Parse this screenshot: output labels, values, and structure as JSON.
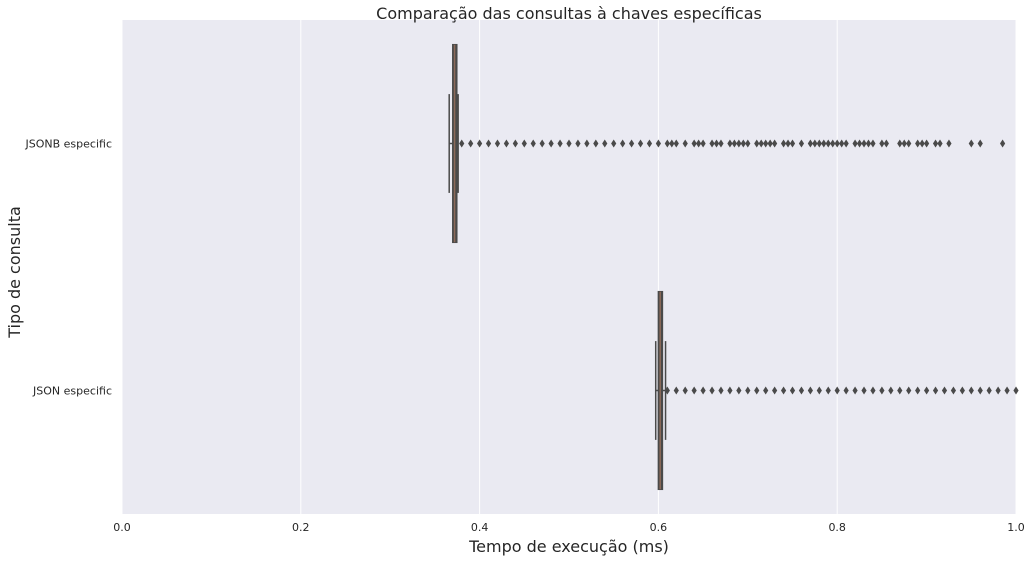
{
  "chart_data": {
    "type": "boxplot",
    "orientation": "horizontal",
    "title": "Comparação das consultas à chaves específicas",
    "xlabel": "Tempo de execução (ms)",
    "ylabel": "Tipo de consulta",
    "xlim": [
      0.0,
      1.0
    ],
    "x_ticks": [
      "0.0",
      "0.2",
      "0.4",
      "0.6",
      "0.8",
      "1.0"
    ],
    "grid": true,
    "background": "#eaeaf2",
    "box_color": "#4a4a4a",
    "median_color": "#8c6a5a",
    "categories": [
      "JSONB especific",
      "JSON especific"
    ],
    "series": [
      {
        "category": "JSONB especific",
        "whisker_low": 0.366,
        "q1": 0.37,
        "median": 0.372,
        "q3": 0.374,
        "whisker_high": 0.376,
        "outliers": [
          0.38,
          0.39,
          0.4,
          0.41,
          0.42,
          0.43,
          0.44,
          0.45,
          0.46,
          0.47,
          0.48,
          0.49,
          0.5,
          0.51,
          0.52,
          0.53,
          0.54,
          0.55,
          0.56,
          0.57,
          0.58,
          0.59,
          0.6,
          0.61,
          0.615,
          0.62,
          0.63,
          0.64,
          0.645,
          0.65,
          0.66,
          0.665,
          0.67,
          0.68,
          0.685,
          0.69,
          0.695,
          0.7,
          0.71,
          0.715,
          0.72,
          0.725,
          0.73,
          0.74,
          0.745,
          0.75,
          0.76,
          0.77,
          0.775,
          0.78,
          0.785,
          0.79,
          0.795,
          0.8,
          0.805,
          0.81,
          0.82,
          0.825,
          0.83,
          0.835,
          0.84,
          0.85,
          0.855,
          0.87,
          0.875,
          0.88,
          0.89,
          0.895,
          0.9,
          0.91,
          0.915,
          0.925,
          0.95,
          0.96,
          0.985
        ]
      },
      {
        "category": "JSON especific",
        "whisker_low": 0.597,
        "q1": 0.6,
        "median": 0.602,
        "q3": 0.604,
        "whisker_high": 0.608,
        "outliers": [
          0.61,
          0.62,
          0.63,
          0.64,
          0.65,
          0.66,
          0.67,
          0.68,
          0.69,
          0.7,
          0.71,
          0.72,
          0.73,
          0.74,
          0.75,
          0.76,
          0.77,
          0.78,
          0.79,
          0.8,
          0.81,
          0.82,
          0.83,
          0.84,
          0.85,
          0.86,
          0.87,
          0.88,
          0.89,
          0.9,
          0.91,
          0.92,
          0.93,
          0.94,
          0.95,
          0.96,
          0.97,
          0.98,
          0.99,
          1.0
        ]
      }
    ]
  }
}
